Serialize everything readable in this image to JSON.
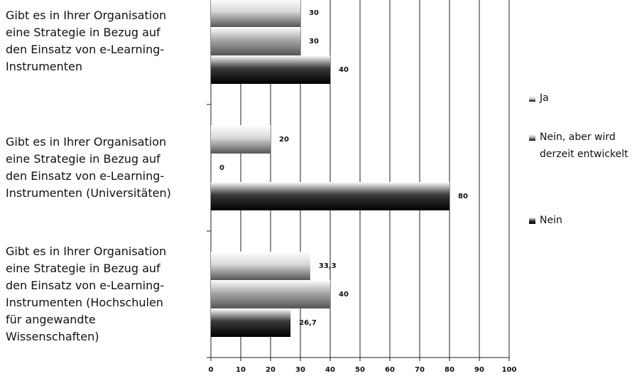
{
  "chart_data": {
    "type": "hbar",
    "categories": [
      "Gibt es in Ihrer Organisation\neine Strategie in Bezug auf\nden Einsatz von e-Learning-\nInstrumenten",
      "Gibt es in Ihrer Organisation\neine Strategie in Bezug auf\nden Einsatz von e-Learning-\nInstrumenten (Universitäten)",
      "Gibt es in Ihrer Organisation\neine Strategie in Bezug auf\nden Einsatz von e-Learning-\nInstrumenten (Hochschulen\nfür angewandte\nWissenschaften)"
    ],
    "series": [
      {
        "name": "Ja",
        "color": "#d8d8d8",
        "values": [
          30,
          20,
          33.3
        ],
        "value_labels": [
          "30",
          "20",
          "33,3"
        ]
      },
      {
        "name": "Nein, aber wird derzeit entwickelt",
        "color": "#a8a8a8",
        "values": [
          30,
          0,
          40
        ],
        "value_labels": [
          "30",
          "0",
          "40"
        ]
      },
      {
        "name": "Nein",
        "color": "#3a3a3a",
        "values": [
          40,
          80,
          26.7
        ],
        "value_labels": [
          "40",
          "80",
          "26,7"
        ]
      }
    ],
    "xlim": [
      0,
      100
    ],
    "xticks": [
      0,
      10,
      20,
      30,
      40,
      50,
      60,
      70,
      80,
      90,
      100
    ],
    "grid": true,
    "legend": "right"
  }
}
